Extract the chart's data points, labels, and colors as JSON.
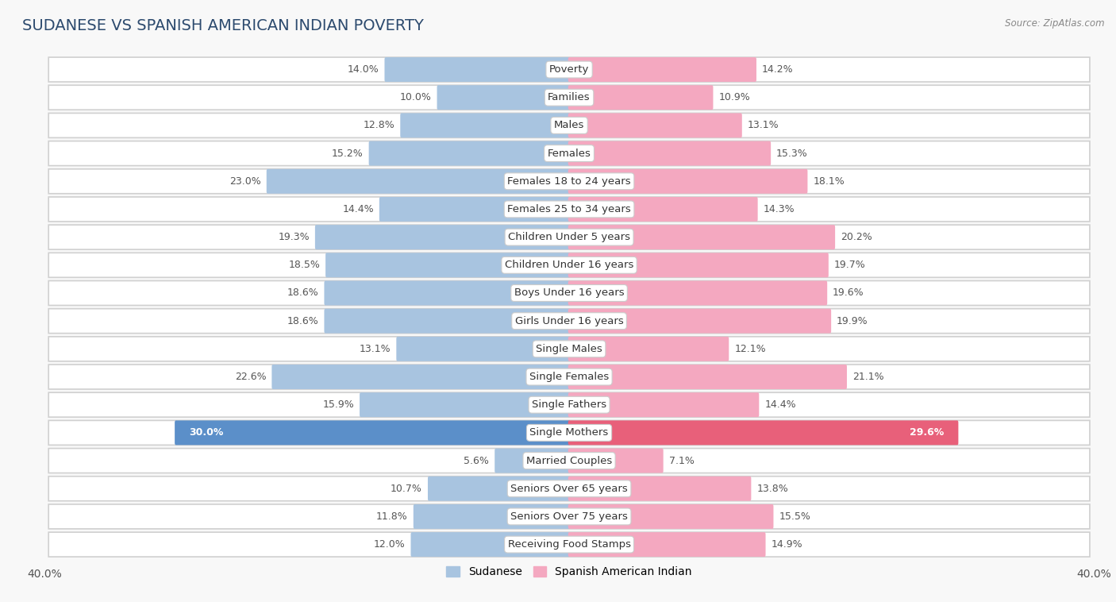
{
  "title": "SUDANESE VS SPANISH AMERICAN INDIAN POVERTY",
  "source": "Source: ZipAtlas.com",
  "categories": [
    "Poverty",
    "Families",
    "Males",
    "Females",
    "Females 18 to 24 years",
    "Females 25 to 34 years",
    "Children Under 5 years",
    "Children Under 16 years",
    "Boys Under 16 years",
    "Girls Under 16 years",
    "Single Males",
    "Single Females",
    "Single Fathers",
    "Single Mothers",
    "Married Couples",
    "Seniors Over 65 years",
    "Seniors Over 75 years",
    "Receiving Food Stamps"
  ],
  "sudanese": [
    14.0,
    10.0,
    12.8,
    15.2,
    23.0,
    14.4,
    19.3,
    18.5,
    18.6,
    18.6,
    13.1,
    22.6,
    15.9,
    30.0,
    5.6,
    10.7,
    11.8,
    12.0
  ],
  "spanish_american_indian": [
    14.2,
    10.9,
    13.1,
    15.3,
    18.1,
    14.3,
    20.2,
    19.7,
    19.6,
    19.9,
    12.1,
    21.1,
    14.4,
    29.6,
    7.1,
    13.8,
    15.5,
    14.9
  ],
  "sudanese_color": "#a8c4e0",
  "spanish_color": "#f4a8c0",
  "single_mothers_sudanese_color": "#5b8fc9",
  "single_mothers_spanish_color": "#e8607a",
  "axis_limit": 40.0,
  "row_bg_color": "#f0f0f0",
  "row_inner_color": "#ffffff",
  "bar_height": 0.72,
  "label_fontsize": 9.5,
  "title_fontsize": 14,
  "legend_fontsize": 10,
  "value_fontsize": 9
}
